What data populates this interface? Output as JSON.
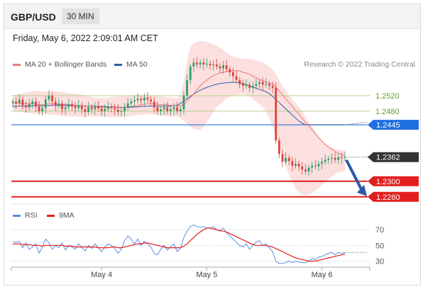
{
  "header": {
    "pair": "GBP/USD",
    "timeframe": "30 MIN"
  },
  "datetime": "Friday, May 6, 2022 2:09:01 AM CET",
  "credit": "Research © 2022 Trading Central",
  "colors": {
    "bull": "#2e9e6a",
    "bear": "#d9443a",
    "ma20": "#f07878",
    "ma50": "#2f5ea8",
    "band": "#fbd9d9",
    "resistance": "#b8d28c",
    "pivot": "#3f7fe0",
    "support": "#e21f1f",
    "price": "#333333",
    "rsi": "#5b8ee6",
    "rsi_ma": "#e21f1f",
    "arrow": "#2a5aa8"
  },
  "chart_data": [
    {
      "type": "candlestick",
      "legend": [
        {
          "name": "MA 20 + Bollinger Bands",
          "color": "#f07878"
        },
        {
          "name": "MA 50",
          "color": "#2f5ea8"
        }
      ],
      "x_ticks": [
        "May 4",
        "May 5",
        "May 6"
      ],
      "ylim": [
        1.2245,
        1.26
      ],
      "levels": [
        {
          "role": "resistance",
          "label": "1.2520",
          "value": 1.252
        },
        {
          "role": "resistance",
          "label": "1.2480",
          "value": 1.248
        },
        {
          "role": "pivot",
          "label": "1.2445",
          "value": 1.2445
        },
        {
          "role": "price",
          "label": "1.2362",
          "value": 1.2362
        },
        {
          "role": "support",
          "label": "1.2300",
          "value": 1.23
        },
        {
          "role": "support",
          "label": "1.2260",
          "value": 1.226
        }
      ],
      "close": [
        1.2505,
        1.25,
        1.251,
        1.2495,
        1.249,
        1.2498,
        1.2505,
        1.2492,
        1.248,
        1.2488,
        1.251,
        1.252,
        1.2505,
        1.2495,
        1.25,
        1.2485,
        1.249,
        1.2498,
        1.2492,
        1.2488,
        1.2495,
        1.2485,
        1.2478,
        1.249,
        1.2485,
        1.2492,
        1.2487,
        1.248,
        1.2486,
        1.2492,
        1.2488,
        1.2484,
        1.2478,
        1.248,
        1.249,
        1.25,
        1.2505,
        1.2508,
        1.2512,
        1.2508,
        1.2515,
        1.251,
        1.2505,
        1.249,
        1.248,
        1.2485,
        1.249,
        1.248,
        1.2485,
        1.249,
        1.248,
        1.2485,
        1.252,
        1.256,
        1.2595,
        1.2605,
        1.26,
        1.2605,
        1.26,
        1.2602,
        1.2598,
        1.26,
        1.2595,
        1.259,
        1.2598,
        1.2588,
        1.258,
        1.257,
        1.256,
        1.255,
        1.2545,
        1.2548,
        1.254,
        1.2545,
        1.255,
        1.2555,
        1.2548,
        1.255,
        1.2545,
        1.254,
        1.2405,
        1.237,
        1.235,
        1.236,
        1.2352,
        1.234,
        1.2345,
        1.2338,
        1.233,
        1.2325,
        1.2335,
        1.234,
        1.2338,
        1.2345,
        1.235,
        1.2355,
        1.2358,
        1.236,
        1.2355,
        1.2362,
        1.236,
        1.2362
      ],
      "ma20": [
        1.25,
        1.25,
        1.2501,
        1.25,
        1.25,
        1.2499,
        1.2499,
        1.2498,
        1.2497,
        1.2497,
        1.2498,
        1.2499,
        1.2499,
        1.2498,
        1.2498,
        1.2497,
        1.2497,
        1.2497,
        1.2496,
        1.2495,
        1.2495,
        1.2494,
        1.2493,
        1.2493,
        1.2492,
        1.2492,
        1.2491,
        1.249,
        1.249,
        1.249,
        1.249,
        1.249,
        1.2489,
        1.2489,
        1.249,
        1.2491,
        1.2492,
        1.2493,
        1.2495,
        1.2496,
        1.2498,
        1.2499,
        1.25,
        1.2499,
        1.2498,
        1.2497,
        1.2497,
        1.2496,
        1.2495,
        1.2494,
        1.2493,
        1.2494,
        1.2498,
        1.2505,
        1.2515,
        1.2525,
        1.2535,
        1.2545,
        1.2553,
        1.256,
        1.2566,
        1.2571,
        1.2575,
        1.2578,
        1.258,
        1.2582,
        1.2583,
        1.2584,
        1.2584,
        1.2583,
        1.258,
        1.2578,
        1.2575,
        1.257,
        1.2566,
        1.2562,
        1.2558,
        1.2555,
        1.2552,
        1.255,
        1.2542,
        1.2532,
        1.2522,
        1.2512,
        1.2502,
        1.2492,
        1.2482,
        1.2472,
        1.2462,
        1.2452,
        1.2442,
        1.2432,
        1.2422,
        1.2412,
        1.2403,
        1.2395,
        1.2388,
        1.2382,
        1.2376,
        1.2372,
        1.2368,
        1.2366
      ],
      "ma50": [
        1.2492,
        1.2492,
        1.2493,
        1.2493,
        1.2493,
        1.2493,
        1.2494,
        1.2494,
        1.2494,
        1.2494,
        1.2494,
        1.2495,
        1.2495,
        1.2495,
        1.2495,
        1.2495,
        1.2495,
        1.2495,
        1.2495,
        1.2494,
        1.2494,
        1.2494,
        1.2493,
        1.2493,
        1.2493,
        1.2493,
        1.2492,
        1.2492,
        1.2492,
        1.2491,
        1.2491,
        1.2491,
        1.249,
        1.249,
        1.249,
        1.249,
        1.249,
        1.2491,
        1.2491,
        1.2492,
        1.2492,
        1.2493,
        1.2493,
        1.2493,
        1.2493,
        1.2493,
        1.2493,
        1.2493,
        1.2493,
        1.2494,
        1.2495,
        1.25,
        1.2506,
        1.2512,
        1.2518,
        1.2524,
        1.2529,
        1.2534,
        1.2538,
        1.2541,
        1.2544,
        1.2547,
        1.2549,
        1.2551,
        1.2552,
        1.2553,
        1.2554,
        1.2554,
        1.2554,
        1.2553,
        1.2551,
        1.2548,
        1.2545,
        1.2542,
        1.2539,
        1.2536,
        1.2533,
        1.253,
        1.2525,
        1.2518,
        1.251,
        1.2502,
        1.2494,
        1.2486,
        1.2478,
        1.247,
        1.2462,
        1.2455,
        1.2449,
        1.2445,
        1.2445,
        1.2445,
        1.2445,
        1.2445,
        1.2445,
        1.2445,
        1.2445,
        1.2445,
        1.2445,
        1.2445,
        1.2445,
        1.2445
      ],
      "band_upper": [
        1.252,
        1.2522,
        1.2524,
        1.2526,
        1.2528,
        1.253,
        1.2532,
        1.2532,
        1.2531,
        1.253,
        1.253,
        1.2531,
        1.2532,
        1.2531,
        1.253,
        1.2529,
        1.2528,
        1.2527,
        1.2526,
        1.2525,
        1.2524,
        1.2522,
        1.252,
        1.2518,
        1.2516,
        1.2515,
        1.2514,
        1.2514,
        1.2514,
        1.2515,
        1.2516,
        1.2517,
        1.2518,
        1.2518,
        1.2519,
        1.252,
        1.2521,
        1.2522,
        1.2522,
        1.2522,
        1.2522,
        1.2522,
        1.2521,
        1.252,
        1.2519,
        1.2518,
        1.2517,
        1.2516,
        1.2515,
        1.2514,
        1.2513,
        1.252,
        1.256,
        1.261,
        1.2645,
        1.2655,
        1.2658,
        1.266,
        1.266,
        1.2658,
        1.2655,
        1.2652,
        1.2648,
        1.2643,
        1.2638,
        1.263,
        1.2624,
        1.262,
        1.2618,
        1.2616,
        1.2615,
        1.2615,
        1.2614,
        1.2612,
        1.261,
        1.2608,
        1.2605,
        1.26,
        1.2594,
        1.2588,
        1.2575,
        1.256,
        1.2545,
        1.2532,
        1.252,
        1.251,
        1.25,
        1.249,
        1.2478,
        1.2465,
        1.2452,
        1.244,
        1.2428,
        1.2416,
        1.2405,
        1.2397,
        1.2391,
        1.2386,
        1.2383,
        1.2381,
        1.238,
        1.238
      ],
      "band_lower": [
        1.248,
        1.2479,
        1.2478,
        1.2477,
        1.2476,
        1.2475,
        1.2474,
        1.2473,
        1.2472,
        1.2472,
        1.2472,
        1.2472,
        1.2471,
        1.247,
        1.2469,
        1.2468,
        1.2467,
        1.2466,
        1.2466,
        1.2466,
        1.2466,
        1.2466,
        1.2466,
        1.2466,
        1.2466,
        1.2466,
        1.2466,
        1.2466,
        1.2466,
        1.2465,
        1.2465,
        1.2465,
        1.2465,
        1.2465,
        1.2466,
        1.2467,
        1.2468,
        1.2469,
        1.247,
        1.2471,
        1.2472,
        1.2472,
        1.2472,
        1.2471,
        1.247,
        1.2469,
        1.2468,
        1.2467,
        1.2466,
        1.2466,
        1.2466,
        1.2462,
        1.2455,
        1.2448,
        1.244,
        1.2435,
        1.2433,
        1.2432,
        1.244,
        1.2452,
        1.2465,
        1.2478,
        1.249,
        1.2498,
        1.2505,
        1.2512,
        1.2517,
        1.252,
        1.2522,
        1.2523,
        1.2522,
        1.2522,
        1.2518,
        1.2512,
        1.2505,
        1.2498,
        1.249,
        1.2478,
        1.2462,
        1.244,
        1.2418,
        1.239,
        1.2365,
        1.234,
        1.2318,
        1.2298,
        1.2282,
        1.2272,
        1.2266,
        1.2264,
        1.2266,
        1.227,
        1.2276,
        1.2283,
        1.229,
        1.2298,
        1.2305,
        1.2312,
        1.2318,
        1.2322,
        1.2325,
        1.2326
      ]
    },
    {
      "type": "line",
      "legend": [
        {
          "name": "RSI",
          "color": "#5b8ee6"
        },
        {
          "name": "9MA",
          "color": "#e21f1f"
        }
      ],
      "ylim": [
        25,
        80
      ],
      "y_ticks": [
        70,
        50,
        30
      ],
      "series": [
        {
          "name": "RSI",
          "values": [
            55,
            54,
            55,
            47,
            53,
            45,
            48,
            52,
            40,
            48,
            58,
            53,
            45,
            50,
            47,
            53,
            44,
            50,
            48,
            45,
            52,
            47,
            43,
            50,
            46,
            52,
            47,
            42,
            48,
            52,
            50,
            46,
            40,
            45,
            56,
            62,
            58,
            52,
            58,
            50,
            55,
            52,
            48,
            40,
            38,
            45,
            50,
            44,
            48,
            52,
            42,
            46,
            60,
            68,
            74,
            76,
            74,
            73,
            74,
            72,
            72,
            74,
            70,
            68,
            72,
            66,
            62,
            58,
            54,
            50,
            48,
            52,
            45,
            50,
            54,
            56,
            50,
            52,
            47,
            42,
            30,
            27,
            27,
            28,
            30,
            28,
            30,
            29,
            28,
            28,
            30,
            33,
            32,
            35,
            36,
            38,
            40,
            41,
            38,
            41,
            40,
            41
          ]
        },
        {
          "name": "9MA",
          "values": [
            52,
            52,
            52,
            51,
            51,
            51,
            50,
            50,
            50,
            49,
            50,
            50,
            50,
            50,
            50,
            50,
            49,
            49,
            49,
            48,
            48,
            48,
            48,
            48,
            48,
            48,
            47,
            47,
            47,
            47,
            48,
            48,
            47,
            47,
            48,
            49,
            50,
            51,
            52,
            52,
            53,
            53,
            52,
            51,
            50,
            49,
            48,
            47,
            47,
            47,
            47,
            47,
            49,
            52,
            56,
            60,
            64,
            67,
            70,
            72,
            72,
            71,
            70,
            69,
            68,
            67,
            65,
            63,
            61,
            59,
            57,
            55,
            53,
            51,
            50,
            50,
            50,
            50,
            49,
            48,
            46,
            44,
            42,
            40,
            38,
            36,
            34,
            33,
            32,
            31,
            30,
            30,
            30,
            31,
            32,
            33,
            34,
            35,
            36,
            37,
            38,
            39
          ]
        }
      ]
    }
  ]
}
